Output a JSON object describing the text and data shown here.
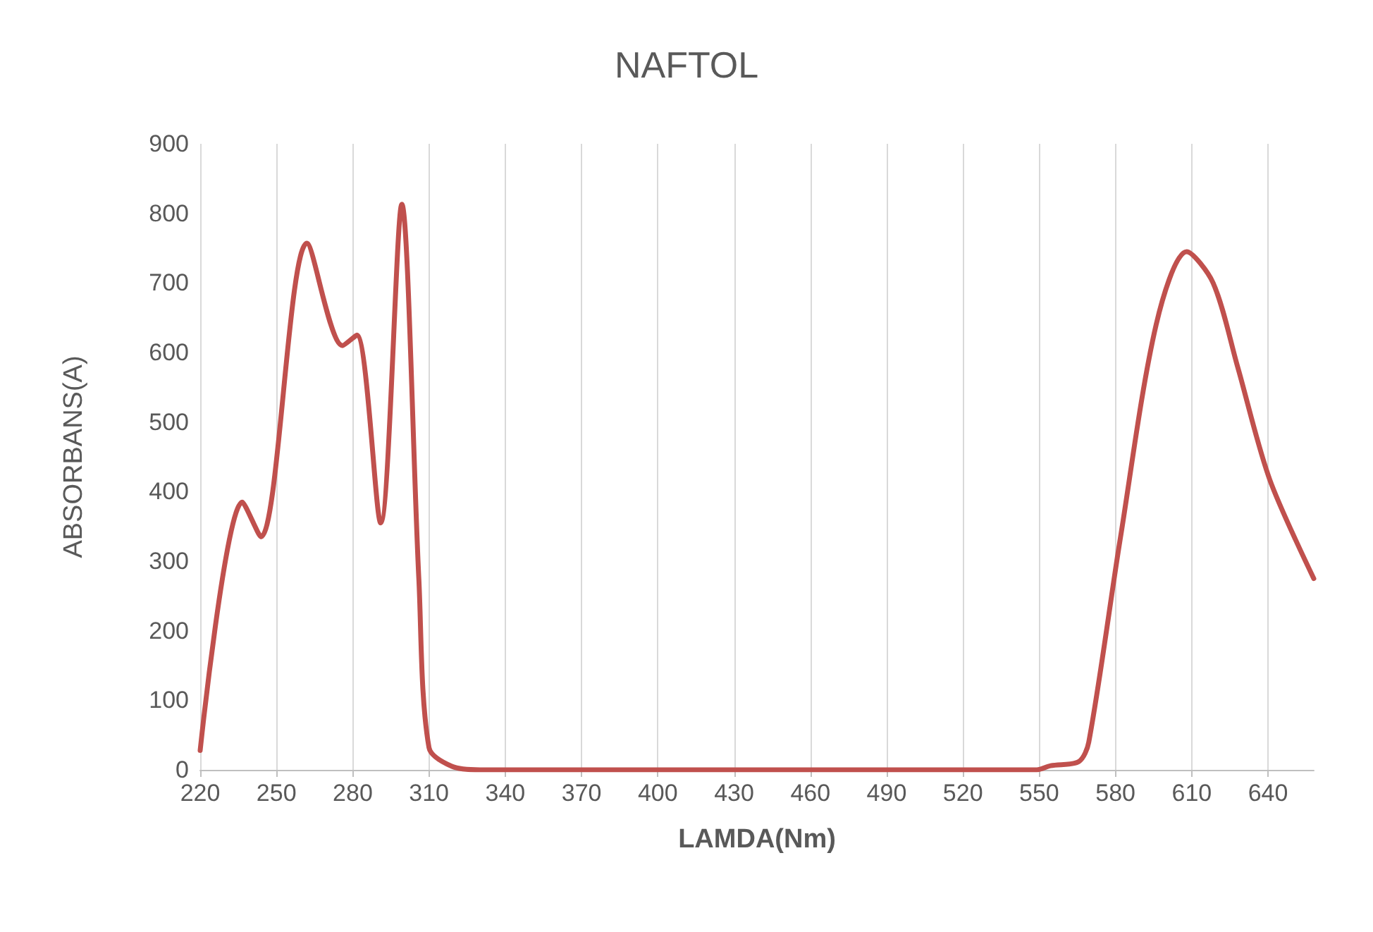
{
  "chart_data": {
    "type": "line",
    "title": "NAFTOL",
    "xlabel": "LAMDA(Nm)",
    "ylabel": "ABSORBANS(A)",
    "series": [
      {
        "color": "#c0504d",
        "x": [
          220,
          236.6,
          243.9,
          262,
          276,
          281.6,
          291,
          299.3,
          306,
          310,
          319,
          330,
          363,
          407,
          549,
          554.5,
          565.6,
          569.5,
          582,
          596,
          608,
          618.4,
          628,
          640.6,
          658
        ],
        "values": [
          28,
          385,
          335,
          757,
          610,
          625,
          355,
          813,
          275,
          32,
          5,
          0,
          0,
          0,
          0,
          6,
          12,
          40,
          335,
          640,
          745,
          700,
          580,
          418,
          275
        ]
      }
    ],
    "xlim": [
      220,
      658
    ],
    "xticks": [
      220,
      250,
      280,
      310,
      340,
      370,
      400,
      430,
      460,
      490,
      520,
      550,
      580,
      610,
      640
    ],
    "ylim": [
      0,
      900
    ],
    "yticks": [
      0,
      100,
      200,
      300,
      400,
      500,
      600,
      700,
      800,
      900
    ],
    "grid": "x",
    "marker": "none",
    "line_style": "solid"
  }
}
